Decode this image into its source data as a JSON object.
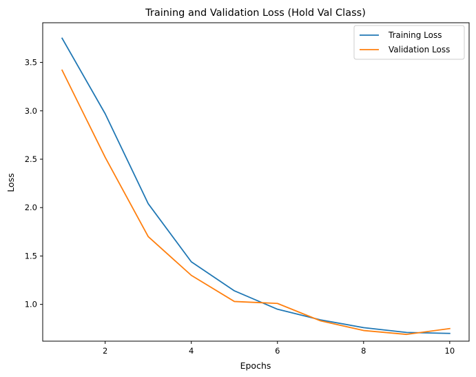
{
  "chart_data": {
    "type": "line",
    "title": "Training and Validation Loss (Hold Val Class)",
    "xlabel": "Epochs",
    "ylabel": "Loss",
    "x": [
      1,
      2,
      3,
      4,
      5,
      6,
      7,
      8,
      9,
      10
    ],
    "xlim": [
      0.55,
      10.45
    ],
    "ylim": [
      0.62,
      3.91
    ],
    "xticks": [
      2,
      4,
      6,
      8,
      10
    ],
    "yticks": [
      1.0,
      1.5,
      2.0,
      2.5,
      3.0,
      3.5
    ],
    "xtick_labels": [
      "2",
      "4",
      "6",
      "8",
      "10"
    ],
    "ytick_labels": [
      "1.0",
      "1.5",
      "2.0",
      "2.5",
      "3.0",
      "3.5"
    ],
    "grid": false,
    "legend_position": "top-right",
    "series": [
      {
        "name": "Training Loss",
        "color": "#1f77b4",
        "values": [
          3.75,
          2.97,
          2.04,
          1.44,
          1.14,
          0.95,
          0.84,
          0.76,
          0.71,
          0.7
        ]
      },
      {
        "name": "Validation Loss",
        "color": "#ff7f0e",
        "values": [
          3.42,
          2.52,
          1.7,
          1.3,
          1.03,
          1.01,
          0.83,
          0.73,
          0.69,
          0.75
        ]
      }
    ]
  }
}
